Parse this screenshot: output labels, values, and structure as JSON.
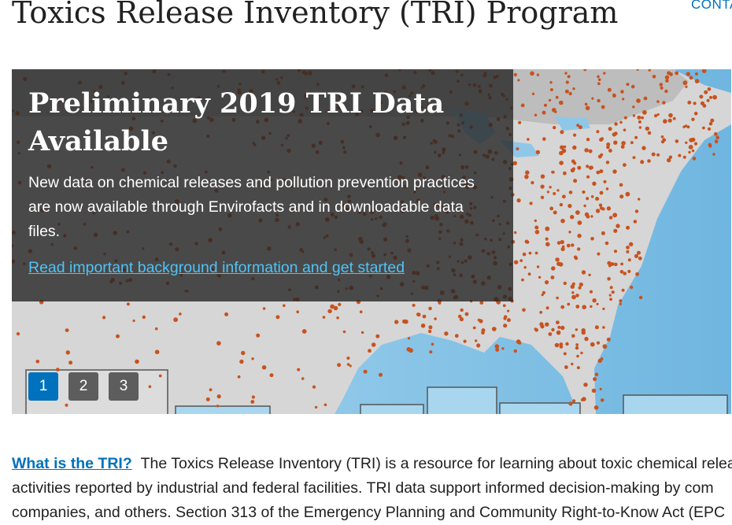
{
  "header": {
    "title": "Toxics Release Inventory (TRI) Program",
    "contact_link": "CONTA"
  },
  "carousel": {
    "caption_title": "Preliminary 2019 TRI Data Available",
    "caption_text": "New data on chemical releases and pollution prevention practices are now available through Envirofacts and in downloadable data files.",
    "caption_link": "Read important background information and get started",
    "pages": [
      "1",
      "2",
      "3"
    ],
    "active_page": "1",
    "colors": {
      "overlay": "#262626",
      "active_page": "#0071bc",
      "inactive_page": "#5d5d5d",
      "facility_dots": "#c7531f",
      "water": "#8fc7e8",
      "land": "#d6d6d6"
    }
  },
  "intro": {
    "link": "What is the TRI?",
    "line1": "The Toxics Release Inventory (TRI) is a resource for learning about toxic chemical relea",
    "line2": "activities reported by industrial and federal facilities. TRI data support informed decision-making by com",
    "line3": "companies, and others. Section 313 of the Emergency Planning and Community Right-to-Know Act (EPC"
  }
}
